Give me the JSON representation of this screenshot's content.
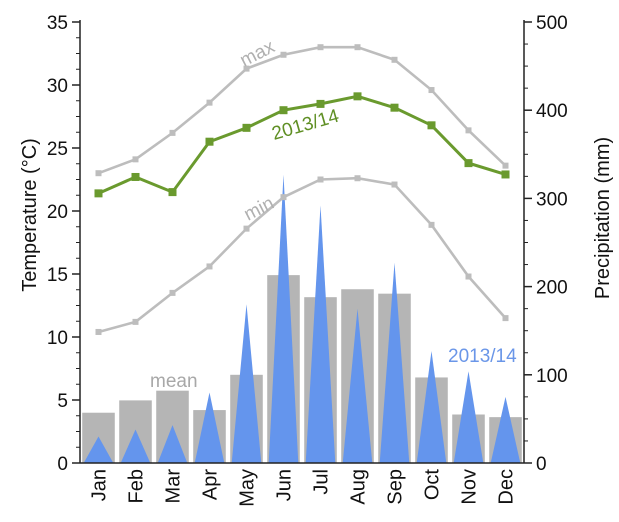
{
  "chart_data": {
    "type": "bar+line",
    "categories": [
      "Jan",
      "Feb",
      "Mar",
      "Apr",
      "May",
      "Jun",
      "Jul",
      "Aug",
      "Sep",
      "Oct",
      "Nov",
      "Dec"
    ],
    "left_axis": {
      "label": "Temperature (°C)",
      "ylim": [
        0,
        35
      ],
      "ticks": [
        0,
        5,
        10,
        15,
        20,
        25,
        30,
        35
      ]
    },
    "right_axis": {
      "label": "Precipitation (mm)",
      "ylim": [
        0,
        500
      ],
      "ticks": [
        0,
        100,
        200,
        300,
        400,
        500
      ]
    },
    "temperature_series": [
      {
        "name": "max",
        "axis": "left",
        "color": "#bdbdbd",
        "values": [
          23.0,
          24.1,
          26.2,
          28.6,
          31.3,
          32.4,
          33.0,
          33.0,
          32.0,
          29.6,
          26.4,
          23.6
        ]
      },
      {
        "name": "2013/14",
        "axis": "left",
        "color": "#6a9a2e",
        "values": [
          21.4,
          22.7,
          21.5,
          25.5,
          26.6,
          28.0,
          28.5,
          29.1,
          28.2,
          26.8,
          23.8,
          22.9
        ]
      },
      {
        "name": "min",
        "axis": "left",
        "color": "#bdbdbd",
        "values": [
          10.4,
          11.2,
          13.5,
          15.6,
          18.6,
          21.1,
          22.5,
          22.6,
          22.1,
          18.9,
          14.8,
          11.5
        ]
      }
    ],
    "precipitation_series": [
      {
        "name": "mean",
        "axis": "right",
        "color": "#b5b5b5",
        "values": [
          57,
          71,
          82,
          60,
          100,
          213,
          188,
          197,
          192,
          97,
          55,
          52
        ]
      },
      {
        "name": "2013/14",
        "axis": "right",
        "color": "#6495ed",
        "values": [
          30,
          38,
          43,
          80,
          180,
          327,
          292,
          175,
          227,
          127,
          104,
          75
        ]
      }
    ],
    "annotations": {
      "max": "max",
      "min": "min",
      "mean": "mean",
      "temp_2013": "2013/14",
      "precip_2013": "2013/14"
    },
    "grid": false
  }
}
